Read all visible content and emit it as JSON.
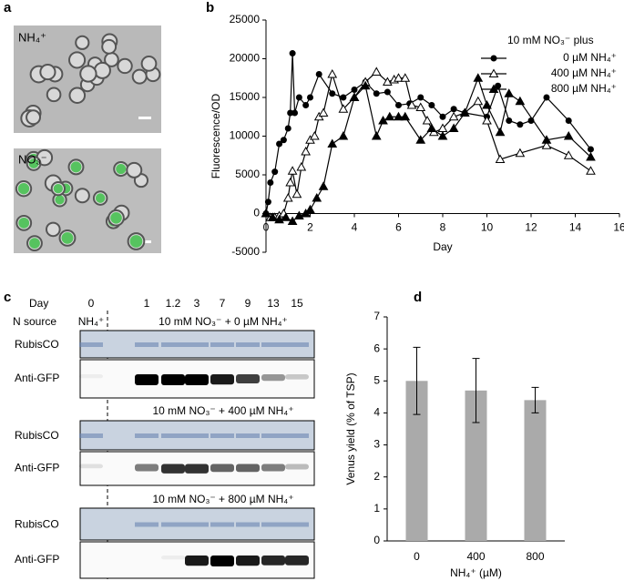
{
  "panels": {
    "a": {
      "letter": "a",
      "labels": [
        "NH₄⁺",
        "NO₃⁻"
      ]
    },
    "c": {
      "letter": "c",
      "day_label": "Day",
      "days": [
        "0",
        "1",
        "1.2",
        "3",
        "7",
        "9",
        "13",
        "15"
      ],
      "n_source_label": "N source",
      "first_source": "NH₄⁺",
      "conditions": [
        "10 mM NO₃⁻ + 0 µM NH₄⁺",
        "10 mM NO₃⁻ + 400 µM NH₄⁺",
        "10 mM NO₃⁻ + 800 µM NH₄⁺"
      ],
      "rows": [
        "RubisCO",
        "Anti-GFP"
      ]
    }
  },
  "chart_data": [
    {
      "type": "line",
      "panel": "b",
      "x_label": "Day",
      "y_label": "Fluorescence/OD",
      "legend_title": "10 mM NO₃⁻ plus",
      "legend": "upper right",
      "xlim": [
        0,
        16
      ],
      "xticks": [
        0,
        2,
        4,
        6,
        8,
        10,
        12,
        14,
        16
      ],
      "ylim": [
        -5000,
        25000
      ],
      "yticks": [
        -5000,
        0,
        5000,
        10000,
        15000,
        20000,
        25000
      ],
      "series": [
        {
          "name": "0 µM NH₄⁺",
          "color": "#000000",
          "marker": "circle",
          "x": [
            0,
            0.1,
            0.2,
            0.4,
            0.6,
            0.8,
            1,
            1.1,
            1.2,
            1.3,
            1.5,
            1.8,
            2,
            2.4,
            3,
            3.5,
            4,
            4.5,
            5,
            5.5,
            6,
            6.5,
            7,
            7.5,
            8,
            8.5,
            9,
            10,
            10.5,
            11,
            11.5,
            12,
            12.7,
            13.7,
            14.7
          ],
          "values": [
            0,
            1500,
            4000,
            5400,
            9000,
            9500,
            11000,
            13000,
            20700,
            13000,
            15000,
            14000,
            15000,
            18000,
            15500,
            15000,
            16000,
            17000,
            15500,
            15700,
            14000,
            14200,
            15000,
            14000,
            12500,
            13500,
            13000,
            12500,
            16500,
            12000,
            11500,
            12000,
            15000,
            12000,
            8300
          ]
        },
        {
          "name": "400 µM NH₄⁺",
          "color": "#000000",
          "marker": "triangle-open",
          "x": [
            0,
            0.2,
            0.4,
            0.6,
            0.8,
            1,
            1.1,
            1.2,
            1.4,
            1.6,
            1.8,
            2,
            2.2,
            2.4,
            2.6,
            3,
            3.5,
            4,
            4.5,
            5,
            5.5,
            5.8,
            6,
            6.3,
            6.6,
            7,
            7.3,
            7.6,
            8,
            8.5,
            9,
            9.6,
            10,
            10.6,
            11.5,
            12.7,
            13.7,
            14.7
          ],
          "values": [
            0,
            -500,
            -500,
            -300,
            0,
            2000,
            4000,
            5500,
            2500,
            6000,
            8000,
            9500,
            10000,
            12500,
            13000,
            18000,
            13500,
            15000,
            17000,
            18300,
            17000,
            17300,
            17500,
            17500,
            14000,
            13700,
            12000,
            10500,
            11000,
            12500,
            13000,
            14500,
            12000,
            7000,
            7800,
            8800,
            7500,
            5500
          ]
        },
        {
          "name": "800 µM NH₄⁺",
          "color": "#000000",
          "marker": "triangle",
          "x": [
            0,
            0.3,
            0.6,
            0.9,
            1.2,
            1.5,
            1.8,
            2,
            2.3,
            2.6,
            3,
            3.5,
            4,
            4.5,
            5,
            5.3,
            5.6,
            6,
            6.3,
            7,
            7.5,
            8,
            8.5,
            9,
            9.6,
            10,
            10.6,
            11,
            11.5,
            12.7,
            13.7,
            14.7
          ],
          "values": [
            0,
            -500,
            -800,
            -500,
            -1000,
            -300,
            0,
            500,
            2000,
            3500,
            9000,
            10000,
            15000,
            16500,
            10000,
            12000,
            12500,
            12500,
            12500,
            9500,
            11000,
            10000,
            11000,
            13000,
            17500,
            14000,
            10500,
            15500,
            14500,
            9500,
            10000,
            7300
          ]
        }
      ]
    },
    {
      "type": "bar",
      "panel": "d",
      "x_label": "NH₄⁺ (µM)",
      "y_label": "Venus yield (% of TSP)",
      "categories": [
        "0",
        "400",
        "800"
      ],
      "values": [
        5.0,
        4.7,
        4.4
      ],
      "errors": [
        1.05,
        1.0,
        0.4
      ],
      "color": "#aaaaaa",
      "ylim": [
        0,
        7
      ],
      "yticks": [
        0,
        1,
        2,
        3,
        4,
        5,
        6,
        7
      ]
    }
  ]
}
